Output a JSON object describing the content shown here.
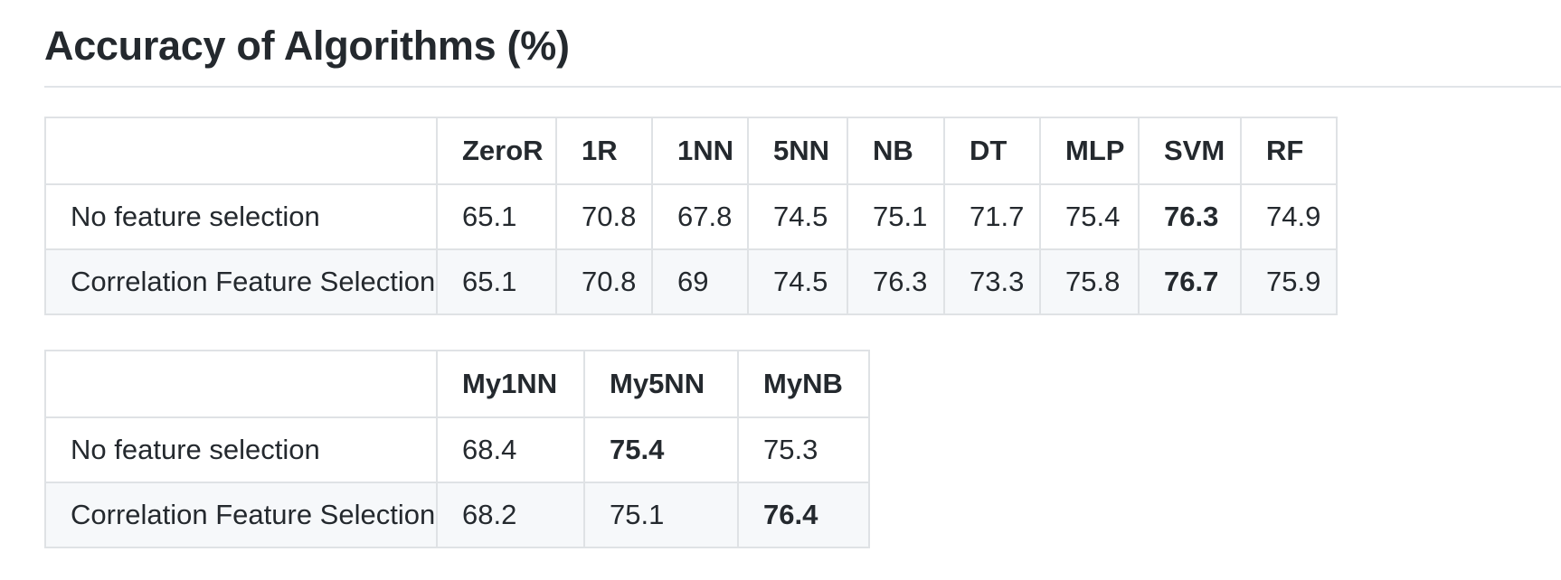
{
  "title": "Accuracy of Algorithms (%)",
  "tables": [
    {
      "headers": [
        "",
        "ZeroR",
        "1R",
        "1NN",
        "5NN",
        "NB",
        "DT",
        "MLP",
        "SVM",
        "RF"
      ],
      "rows": [
        {
          "label": "No feature selection",
          "values": [
            "65.1",
            "70.8",
            "67.8",
            "74.5",
            "75.1",
            "71.7",
            "75.4",
            "76.3",
            "74.9"
          ],
          "bold_index": 7
        },
        {
          "label": "Correlation Feature Selection",
          "values": [
            "65.1",
            "70.8",
            "69",
            "74.5",
            "76.3",
            "73.3",
            "75.8",
            "76.7",
            "75.9"
          ],
          "bold_index": 7
        }
      ]
    },
    {
      "headers": [
        "",
        "My1NN",
        "My5NN",
        "MyNB"
      ],
      "rows": [
        {
          "label": "No feature selection",
          "values": [
            "68.4",
            "75.4",
            "75.3"
          ],
          "bold_index": 1
        },
        {
          "label": "Correlation Feature Selection",
          "values": [
            "68.2",
            "75.1",
            "76.4"
          ],
          "bold_index": 2
        }
      ]
    }
  ]
}
